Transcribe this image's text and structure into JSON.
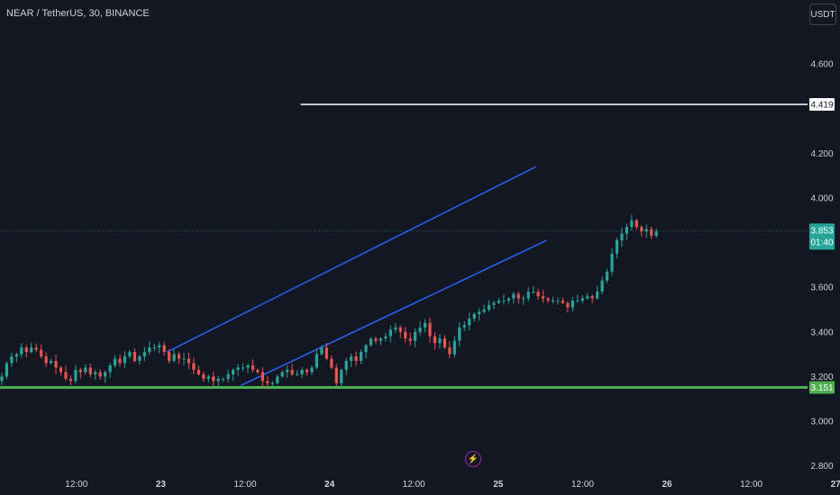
{
  "header": {
    "title": "NEAR / TetherUS, 30, BINANCE",
    "currency_button": "USDT"
  },
  "colors": {
    "background": "#131722",
    "grid": "#1e222d",
    "text": "#d1d4dc",
    "up": "#26a69a",
    "down": "#ef5350",
    "channel": "#2962ff",
    "support": "#4caf50",
    "resistance": "#ffffff",
    "price_line": "#26a69a"
  },
  "icons": {
    "flash": "lightning-bolt-icon"
  },
  "chart_data": {
    "type": "candlestick",
    "y_ticks": [
      "4.600",
      "4.200",
      "4.000",
      "3.600",
      "3.400",
      "3.200",
      "3.000",
      "2.800"
    ],
    "x_ticks": [
      "12:00",
      "23",
      "12:00",
      "24",
      "12:00",
      "25",
      "12:00",
      "26",
      "12:00",
      "27"
    ],
    "ylim": [
      2.73,
      4.83
    ],
    "bars_span": [
      0,
      187
    ],
    "bars_total": 315,
    "x_tick_bars": [
      12,
      36,
      60,
      84,
      108,
      132,
      156,
      180,
      204,
      228
    ],
    "horizontal_levels": [
      {
        "label": "4.419",
        "value": 4.419,
        "start_bar": 85,
        "kind": "resistance"
      },
      {
        "label": "3.151",
        "value": 3.151,
        "start_bar": 0,
        "kind": "support"
      }
    ],
    "current_price": {
      "label": "3.853",
      "value": 3.853,
      "countdown": "01:40"
    },
    "channel": {
      "upper": [
        [
          47,
          3.31
        ],
        [
          152,
          4.14
        ]
      ],
      "lower": [
        [
          68,
          3.16
        ],
        [
          155,
          3.81
        ]
      ]
    },
    "candles_close": [
      3.2,
      3.26,
      3.29,
      3.3,
      3.33,
      3.31,
      3.33,
      3.32,
      3.29,
      3.26,
      3.27,
      3.24,
      3.22,
      3.19,
      3.18,
      3.23,
      3.22,
      3.24,
      3.21,
      3.22,
      3.2,
      3.22,
      3.25,
      3.28,
      3.26,
      3.29,
      3.31,
      3.27,
      3.29,
      3.31,
      3.33,
      3.33,
      3.34,
      3.31,
      3.27,
      3.3,
      3.28,
      3.28,
      3.26,
      3.23,
      3.21,
      3.19,
      3.2,
      3.18,
      3.19,
      3.19,
      3.21,
      3.23,
      3.24,
      3.24,
      3.25,
      3.23,
      3.22,
      3.18,
      3.17,
      3.17,
      3.2,
      3.22,
      3.23,
      3.21,
      3.21,
      3.23,
      3.22,
      3.24,
      3.3,
      3.33,
      3.28,
      3.24,
      3.17,
      3.23,
      3.27,
      3.29,
      3.27,
      3.31,
      3.34,
      3.37,
      3.36,
      3.37,
      3.38,
      3.41,
      3.42,
      3.4,
      3.37,
      3.36,
      3.4,
      3.42,
      3.44,
      3.38,
      3.35,
      3.37,
      3.33,
      3.3,
      3.36,
      3.42,
      3.43,
      3.46,
      3.48,
      3.49,
      3.5,
      3.52,
      3.53,
      3.54,
      3.54,
      3.55,
      3.57,
      3.55,
      3.55,
      3.58,
      3.58,
      3.56,
      3.55,
      3.54,
      3.54,
      3.54,
      3.53,
      3.51,
      3.54,
      3.54,
      3.55,
      3.56,
      3.55,
      3.58,
      3.63,
      3.67,
      3.75,
      3.81,
      3.84,
      3.87,
      3.9,
      3.87,
      3.85,
      3.86,
      3.83,
      3.85
    ]
  }
}
